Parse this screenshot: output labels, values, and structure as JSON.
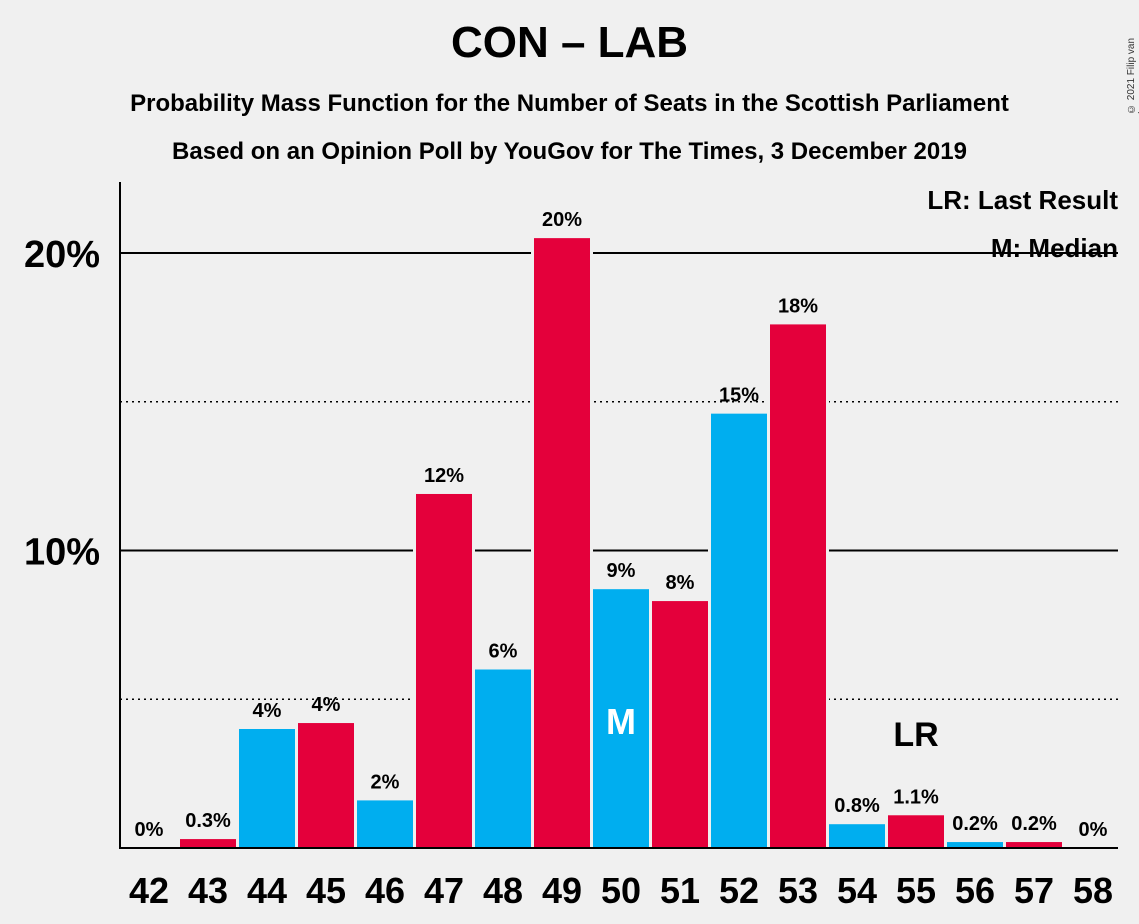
{
  "title": "CON – LAB",
  "subtitle1": "Probability Mass Function for the Number of Seats in the Scottish Parliament",
  "subtitle2": "Based on an Opinion Poll by YouGov for The Times, 3 December 2019",
  "copyright": "© 2021 Filip van Laenen",
  "legend": {
    "last_result": "LR: Last Result",
    "median": "M: Median"
  },
  "colors": {
    "con": "#e4003b",
    "lab": "#00aeef",
    "background": "#f0f0f0"
  },
  "chart_data": {
    "type": "bar",
    "categories": [
      "42",
      "43",
      "44",
      "45",
      "46",
      "47",
      "48",
      "49",
      "50",
      "51",
      "52",
      "53",
      "54",
      "55",
      "56",
      "57",
      "58"
    ],
    "values": [
      0,
      0.3,
      4,
      4.2,
      1.6,
      11.9,
      6.0,
      20.5,
      8.7,
      8.3,
      14.6,
      17.6,
      0.8,
      1.1,
      0.2,
      0.2,
      0
    ],
    "data_labels": [
      "0%",
      "0.3%",
      "4%",
      "4%",
      "2%",
      "12%",
      "6%",
      "20%",
      "9%",
      "8%",
      "15%",
      "18%",
      "0.8%",
      "1.1%",
      "0.2%",
      "0.2%",
      "0%"
    ],
    "bar_colors": [
      "con",
      "con",
      "lab",
      "con",
      "lab",
      "con",
      "lab",
      "con",
      "lab",
      "con",
      "lab",
      "con",
      "lab",
      "con",
      "lab",
      "con",
      "con"
    ],
    "yticks": [
      {
        "value": 10,
        "label": "10%"
      },
      {
        "value": 20,
        "label": "20%"
      }
    ],
    "ylim": [
      0,
      22.4
    ],
    "median_category": "50",
    "median_label": "M",
    "last_result_category": "55",
    "last_result_label": "LR",
    "grid": "solid at labelled ticks, dotted at 5% intervals between"
  }
}
